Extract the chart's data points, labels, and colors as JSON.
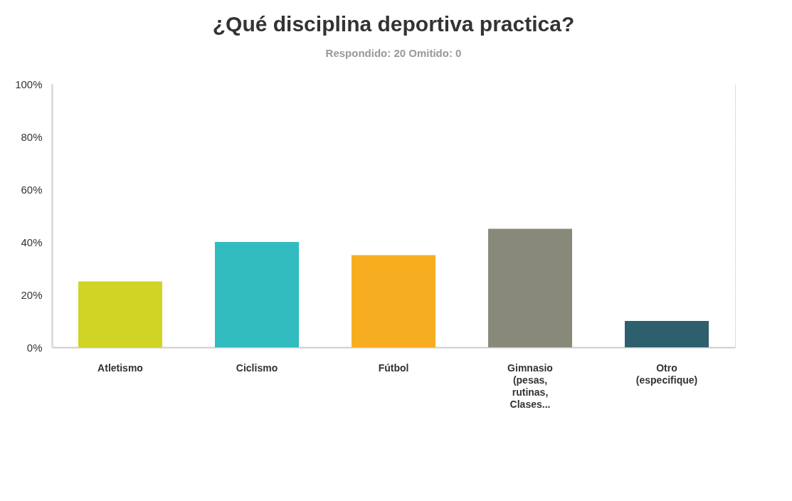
{
  "chart_data": {
    "type": "bar",
    "title": "¿Qué disciplina deportiva practica?",
    "subtitle": "Respondido: 20    Omitido: 0",
    "categories": [
      "Atletismo",
      "Ciclismo",
      "Fútbol",
      "Gimnasio (pesas, rutinas, Clases...",
      "Otro (especifique)"
    ],
    "values": [
      25,
      40,
      35,
      45,
      10
    ],
    "colors": [
      "#d0d425",
      "#33bcc0",
      "#f6ae20",
      "#898979",
      "#2e5f6c"
    ],
    "ylim": [
      0,
      100
    ],
    "yticks": [
      {
        "value": 0,
        "label": "0%"
      },
      {
        "value": 10,
        "label": null
      },
      {
        "value": 20,
        "label": "20%"
      },
      {
        "value": 30,
        "label": null
      },
      {
        "value": 40,
        "label": "40%"
      },
      {
        "value": 50,
        "label": null
      },
      {
        "value": 60,
        "label": "60%"
      },
      {
        "value": 70,
        "label": null
      },
      {
        "value": 80,
        "label": "80%"
      },
      {
        "value": 90,
        "label": null
      },
      {
        "value": 100,
        "label": "100%"
      }
    ],
    "grid": "y"
  }
}
